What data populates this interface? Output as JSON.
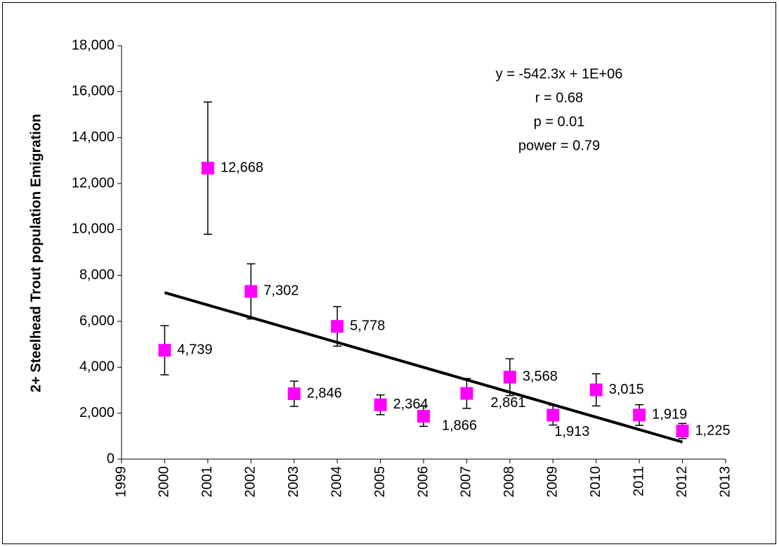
{
  "chart_data": {
    "type": "scatter",
    "y_label": "2+ Steelhead Trout population Emigration",
    "annotations": [
      "y = -542.3x + 1E+06",
      "r = 0.68",
      "p = 0.01",
      "power = 0.79"
    ],
    "x": [
      2000,
      2001,
      2002,
      2003,
      2004,
      2005,
      2006,
      2007,
      2008,
      2009,
      2010,
      2011,
      2012
    ],
    "values": [
      4739,
      12668,
      7302,
      2846,
      5778,
      2364,
      1866,
      2861,
      3568,
      1913,
      3015,
      1919,
      1225
    ],
    "value_labels": [
      "4,739",
      "12,668",
      "7,302",
      "2,846",
      "5,778",
      "2,364",
      "1,866",
      "2,861",
      "3,568",
      "1,913",
      "3,015",
      "1,919",
      "1,225"
    ],
    "errors": [
      1070,
      2880,
      1200,
      550,
      860,
      430,
      440,
      650,
      800,
      430,
      700,
      450,
      330
    ],
    "color": "#ff00ff",
    "trendline": {
      "x": [
        2000,
        2012
      ],
      "values": [
        7250,
        742
      ],
      "color": "#000000"
    },
    "xlim": [
      1999,
      2013
    ],
    "xticks": [
      1999,
      2000,
      2001,
      2002,
      2003,
      2004,
      2005,
      2006,
      2007,
      2008,
      2009,
      2010,
      2011,
      2012,
      2013
    ],
    "ylim": [
      0,
      18000
    ],
    "yticks": [
      0,
      {
        "value": 2000,
        "label": "2,000"
      },
      {
        "value": 4000,
        "label": "4,000"
      },
      {
        "value": 6000,
        "label": "6,000"
      },
      {
        "value": 8000,
        "label": "8,000"
      },
      {
        "value": 10000,
        "label": "10,000"
      },
      {
        "value": 12000,
        "label": "12,000"
      },
      {
        "value": 14000,
        "label": "14,000"
      },
      {
        "value": 16000,
        "label": "16,000"
      },
      {
        "value": 18000,
        "label": "18,000"
      }
    ],
    "grid": false
  }
}
